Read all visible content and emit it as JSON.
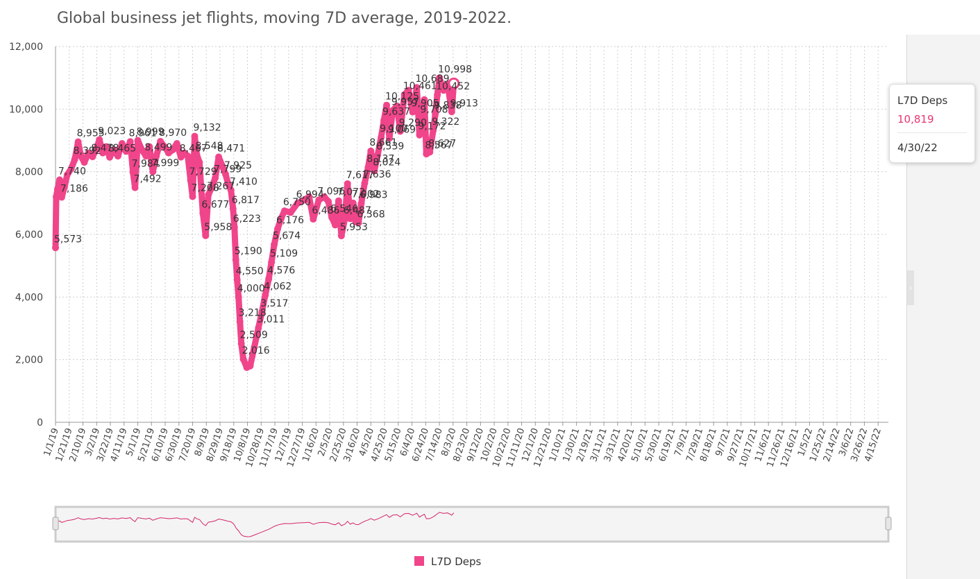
{
  "title": "Global business jet flights, moving 7D average, 2019-2022.",
  "colors": {
    "series": "#f0458a",
    "tooltip_value": "#e8356d",
    "grid": "#cfcfcf"
  },
  "tooltip": {
    "series": "L7D Deps",
    "value": "10,819",
    "date": "4/30/22"
  },
  "legend": {
    "label": "L7D Deps"
  },
  "chart_data": {
    "type": "line",
    "title": "Global business jet flights, moving 7D average, 2019-2022.",
    "ylim": [
      0,
      12000
    ],
    "yticks": [
      0,
      2000,
      4000,
      6000,
      8000,
      10000,
      12000
    ],
    "ytick_labels": [
      "0",
      "2,000",
      "4,000",
      "6,000",
      "8,000",
      "10,000",
      "12,000"
    ],
    "xlim": [
      "1/1/19",
      "4/30/22"
    ],
    "xtick_labels": [
      "1/1/19",
      "1/21/19",
      "2/10/19",
      "3/2/19",
      "3/22/19",
      "4/11/19",
      "5/1/19",
      "5/21/19",
      "6/10/19",
      "6/30/19",
      "7/20/19",
      "8/9/19",
      "8/29/19",
      "9/18/19",
      "10/8/19",
      "10/28/19",
      "11/17/19",
      "12/7/19",
      "12/27/19",
      "1/16/20",
      "2/5/20",
      "2/25/20",
      "3/16/20",
      "4/5/20",
      "4/25/20",
      "5/15/20",
      "6/4/20",
      "6/24/20",
      "7/14/20",
      "8/3/20",
      "8/23/20",
      "9/12/20",
      "10/2/20",
      "10/22/20",
      "11/11/20",
      "12/1/20",
      "12/21/20",
      "1/10/21",
      "1/30/21",
      "2/19/21",
      "3/11/21",
      "3/31/21",
      "4/20/21",
      "5/10/21",
      "5/30/21",
      "6/19/21",
      "7/9/21",
      "7/29/21",
      "8/18/21",
      "9/7/21",
      "9/27/21",
      "10/17/21",
      "11/6/21",
      "11/26/21",
      "12/16/21",
      "1/5/22",
      "1/25/22",
      "2/14/22",
      "3/6/22",
      "3/26/22",
      "4/15/22"
    ],
    "grid": true,
    "legend_position": "bottom-center",
    "series": [
      {
        "name": "L7D Deps",
        "points": [
          [
            "1/1/19",
            5573
          ],
          [
            "1/2/19",
            7200
          ],
          [
            "1/4/19",
            7450
          ],
          [
            "1/7/19",
            7740
          ],
          [
            "1/10/19",
            7186
          ],
          [
            "1/14/19",
            7500
          ],
          [
            "1/18/19",
            7900
          ],
          [
            "1/24/19",
            8100
          ],
          [
            "1/29/19",
            8392
          ],
          [
            "2/3/19",
            8955
          ],
          [
            "2/7/19",
            8500
          ],
          [
            "2/12/19",
            8300
          ],
          [
            "2/18/19",
            8600
          ],
          [
            "2/24/19",
            8478
          ],
          [
            "3/1/19",
            8700
          ],
          [
            "3/6/19",
            9023
          ],
          [
            "3/11/19",
            8600
          ],
          [
            "3/16/19",
            8800
          ],
          [
            "3/21/19",
            8465
          ],
          [
            "3/27/19",
            8700
          ],
          [
            "4/2/19",
            8500
          ],
          [
            "4/8/19",
            8900
          ],
          [
            "4/14/19",
            8650
          ],
          [
            "4/20/19",
            8961
          ],
          [
            "4/24/19",
            7984
          ],
          [
            "4/27/19",
            7492
          ],
          [
            "5/1/19",
            8999
          ],
          [
            "5/7/19",
            8700
          ],
          [
            "5/13/19",
            8499
          ],
          [
            "5/18/19",
            8800
          ],
          [
            "5/23/19",
            7999
          ],
          [
            "5/28/19",
            8500
          ],
          [
            "6/3/19",
            8970
          ],
          [
            "6/9/19",
            8800
          ],
          [
            "6/15/19",
            8600
          ],
          [
            "6/21/19",
            8700
          ],
          [
            "6/27/19",
            8900
          ],
          [
            "7/3/19",
            8467
          ],
          [
            "7/8/19",
            8600
          ],
          [
            "7/13/19",
            8500
          ],
          [
            "7/17/19",
            7729
          ],
          [
            "7/20/19",
            7208
          ],
          [
            "7/23/19",
            9132
          ],
          [
            "7/26/19",
            8548
          ],
          [
            "7/30/19",
            8300
          ],
          [
            "8/4/19",
            6677
          ],
          [
            "8/8/19",
            5958
          ],
          [
            "8/12/19",
            7267
          ],
          [
            "8/17/19",
            7500
          ],
          [
            "8/22/19",
            7799
          ],
          [
            "8/27/19",
            8471
          ],
          [
            "9/1/19",
            8200
          ],
          [
            "9/6/19",
            7925
          ],
          [
            "9/10/19",
            7600
          ],
          [
            "9/14/19",
            7410
          ],
          [
            "9/17/19",
            6817
          ],
          [
            "9/19/19",
            6223
          ],
          [
            "9/21/19",
            5190
          ],
          [
            "9/23/19",
            4550
          ],
          [
            "9/25/19",
            4000
          ],
          [
            "9/27/19",
            3218
          ],
          [
            "9/29/19",
            2509
          ],
          [
            "10/2/19",
            2016
          ],
          [
            "10/7/19",
            1750
          ],
          [
            "10/12/19",
            1800
          ],
          [
            "10/18/19",
            2400
          ],
          [
            "10/24/19",
            3011
          ],
          [
            "10/29/19",
            3517
          ],
          [
            "11/3/19",
            4062
          ],
          [
            "11/8/19",
            4576
          ],
          [
            "11/12/19",
            5109
          ],
          [
            "11/16/19",
            5674
          ],
          [
            "11/21/19",
            6176
          ],
          [
            "11/26/19",
            6500
          ],
          [
            "12/1/19",
            6750
          ],
          [
            "12/10/19",
            6700
          ],
          [
            "12/20/19",
            6994
          ],
          [
            "12/30/19",
            7100
          ],
          [
            "1/6/20",
            7200
          ],
          [
            "1/12/20",
            6486
          ],
          [
            "1/20/20",
            7096
          ],
          [
            "1/28/20",
            7200
          ],
          [
            "2/3/20",
            7050
          ],
          [
            "2/8/20",
            6546
          ],
          [
            "2/13/20",
            6300
          ],
          [
            "2/18/20",
            7072
          ],
          [
            "2/22/20",
            5953
          ],
          [
            "2/27/20",
            6487
          ],
          [
            "3/2/20",
            7617
          ],
          [
            "3/6/20",
            6500
          ],
          [
            "3/10/20",
            7002
          ],
          [
            "3/14/20",
            6400
          ],
          [
            "3/18/20",
            6368
          ],
          [
            "3/22/20",
            6983
          ],
          [
            "3/27/20",
            7636
          ],
          [
            "4/1/20",
            8137
          ],
          [
            "4/5/20",
            8661
          ],
          [
            "4/10/20",
            8024
          ],
          [
            "4/15/20",
            8539
          ],
          [
            "4/20/20",
            9100
          ],
          [
            "4/24/20",
            9637
          ],
          [
            "4/28/20",
            10125
          ],
          [
            "5/2/20",
            9069
          ],
          [
            "5/7/20",
            9957
          ],
          [
            "5/13/20",
            10100
          ],
          [
            "5/18/20",
            9290
          ],
          [
            "5/24/20",
            10461
          ],
          [
            "5/30/20",
            10600
          ],
          [
            "6/5/20",
            9905
          ],
          [
            "6/11/20",
            10689
          ],
          [
            "6/15/20",
            9172
          ],
          [
            "6/18/20",
            9708
          ],
          [
            "6/22/20",
            10300
          ],
          [
            "6/25/20",
            8567
          ],
          [
            "6/30/20",
            8627
          ],
          [
            "7/5/20",
            9322
          ],
          [
            "7/8/20",
            9838
          ],
          [
            "7/11/20",
            10452
          ],
          [
            "7/14/20",
            10998
          ],
          [
            "7/20/20",
            10600
          ],
          [
            "7/26/20",
            10800
          ],
          [
            "8/1/20",
            9913
          ],
          [
            "8/4/20",
            10819
          ]
        ]
      }
    ],
    "data_labels": [
      {
        "date": "1/1/19",
        "value": 5573,
        "text": "5,573"
      },
      {
        "date": "1/7/19",
        "value": 7740,
        "text": "7,740"
      },
      {
        "date": "1/10/19",
        "value": 7186,
        "text": "7,186"
      },
      {
        "date": "1/29/19",
        "value": 8392,
        "text": "8,392"
      },
      {
        "date": "2/3/19",
        "value": 8955,
        "text": "8,955"
      },
      {
        "date": "2/24/19",
        "value": 8478,
        "text": "8,478"
      },
      {
        "date": "3/6/19",
        "value": 9023,
        "text": "9,023"
      },
      {
        "date": "3/21/19",
        "value": 8465,
        "text": "8,465"
      },
      {
        "date": "4/20/19",
        "value": 8961,
        "text": "8,961"
      },
      {
        "date": "4/24/19",
        "value": 7984,
        "text": "7,984"
      },
      {
        "date": "4/27/19",
        "value": 7492,
        "text": "7,492"
      },
      {
        "date": "5/1/19",
        "value": 8999,
        "text": "8,999"
      },
      {
        "date": "5/13/19",
        "value": 8499,
        "text": "8,499"
      },
      {
        "date": "5/23/19",
        "value": 7999,
        "text": "7,999"
      },
      {
        "date": "6/3/19",
        "value": 8970,
        "text": "8,970"
      },
      {
        "date": "7/3/19",
        "value": 8467,
        "text": "8,467"
      },
      {
        "date": "7/17/19",
        "value": 7729,
        "text": "7,729"
      },
      {
        "date": "7/20/19",
        "value": 7208,
        "text": "7,208"
      },
      {
        "date": "7/23/19",
        "value": 9132,
        "text": "9,132"
      },
      {
        "date": "7/26/19",
        "value": 8548,
        "text": "8,548"
      },
      {
        "date": "8/4/19",
        "value": 6677,
        "text": "6,677"
      },
      {
        "date": "8/8/19",
        "value": 5958,
        "text": "5,958"
      },
      {
        "date": "8/12/19",
        "value": 7267,
        "text": "7,267"
      },
      {
        "date": "8/22/19",
        "value": 7799,
        "text": "7,799"
      },
      {
        "date": "8/27/19",
        "value": 8471,
        "text": "8,471"
      },
      {
        "date": "9/6/19",
        "value": 7925,
        "text": "7,925"
      },
      {
        "date": "9/14/19",
        "value": 7410,
        "text": "7,410"
      },
      {
        "date": "9/17/19",
        "value": 6817,
        "text": "6,817"
      },
      {
        "date": "9/19/19",
        "value": 6223,
        "text": "6,223"
      },
      {
        "date": "9/21/19",
        "value": 5190,
        "text": "5,190"
      },
      {
        "date": "9/23/19",
        "value": 4550,
        "text": "4,550"
      },
      {
        "date": "9/25/19",
        "value": 4000,
        "text": "4,000"
      },
      {
        "date": "9/27/19",
        "value": 3218,
        "text": "3,218"
      },
      {
        "date": "9/29/19",
        "value": 2509,
        "text": "2,509"
      },
      {
        "date": "10/2/19",
        "value": 2016,
        "text": "2,016"
      },
      {
        "date": "10/24/19",
        "value": 3011,
        "text": "3,011"
      },
      {
        "date": "10/29/19",
        "value": 3517,
        "text": "3,517"
      },
      {
        "date": "11/3/19",
        "value": 4062,
        "text": "4,062"
      },
      {
        "date": "11/8/19",
        "value": 4576,
        "text": "4,576"
      },
      {
        "date": "11/12/19",
        "value": 5109,
        "text": "5,109"
      },
      {
        "date": "11/16/19",
        "value": 5674,
        "text": "5,674"
      },
      {
        "date": "11/21/19",
        "value": 6176,
        "text": "6,176"
      },
      {
        "date": "12/1/19",
        "value": 6750,
        "text": "6,750"
      },
      {
        "date": "12/20/19",
        "value": 6994,
        "text": "6,994"
      },
      {
        "date": "1/12/20",
        "value": 6486,
        "text": "6,486"
      },
      {
        "date": "1/20/20",
        "value": 7096,
        "text": "7,096"
      },
      {
        "date": "2/8/20",
        "value": 6546,
        "text": "6,546"
      },
      {
        "date": "2/18/20",
        "value": 7072,
        "text": "7,072"
      },
      {
        "date": "2/22/20",
        "value": 5953,
        "text": "5,953"
      },
      {
        "date": "2/27/20",
        "value": 6487,
        "text": "6,487"
      },
      {
        "date": "3/2/20",
        "value": 7617,
        "text": "7,617"
      },
      {
        "date": "3/10/20",
        "value": 7002,
        "text": "7,002"
      },
      {
        "date": "3/18/20",
        "value": 6368,
        "text": "6,368"
      },
      {
        "date": "3/22/20",
        "value": 6983,
        "text": "6,983"
      },
      {
        "date": "3/27/20",
        "value": 7636,
        "text": "7,636"
      },
      {
        "date": "4/1/20",
        "value": 8137,
        "text": "8,137"
      },
      {
        "date": "4/5/20",
        "value": 8661,
        "text": "8,661"
      },
      {
        "date": "4/10/20",
        "value": 8024,
        "text": "8,024"
      },
      {
        "date": "4/15/20",
        "value": 8539,
        "text": "8,539"
      },
      {
        "date": "4/20/20",
        "value": 9100,
        "text": "9,100"
      },
      {
        "date": "4/24/20",
        "value": 9637,
        "text": "9,637"
      },
      {
        "date": "4/28/20",
        "value": 10125,
        "text": "10,125"
      },
      {
        "date": "5/2/20",
        "value": 9069,
        "text": "9,069"
      },
      {
        "date": "5/7/20",
        "value": 9957,
        "text": "9,957"
      },
      {
        "date": "5/18/20",
        "value": 9290,
        "text": "9,290"
      },
      {
        "date": "5/24/20",
        "value": 10461,
        "text": "10,461"
      },
      {
        "date": "6/5/20",
        "value": 9905,
        "text": "9,905"
      },
      {
        "date": "6/11/20",
        "value": 10689,
        "text": "10,689"
      },
      {
        "date": "6/15/20",
        "value": 9172,
        "text": "9,172"
      },
      {
        "date": "6/18/20",
        "value": 9708,
        "text": "9,708"
      },
      {
        "date": "6/25/20",
        "value": 8567,
        "text": "8,567"
      },
      {
        "date": "6/30/20",
        "value": 8627,
        "text": "8,627"
      },
      {
        "date": "7/5/20",
        "value": 9322,
        "text": "9,322"
      },
      {
        "date": "7/8/20",
        "value": 9838,
        "text": "9,838"
      },
      {
        "date": "7/11/20",
        "value": 10452,
        "text": "10,452"
      },
      {
        "date": "7/14/20",
        "value": 10998,
        "text": "10,998"
      },
      {
        "date": "8/1/20",
        "value": 9913,
        "text": "9,913"
      }
    ]
  }
}
